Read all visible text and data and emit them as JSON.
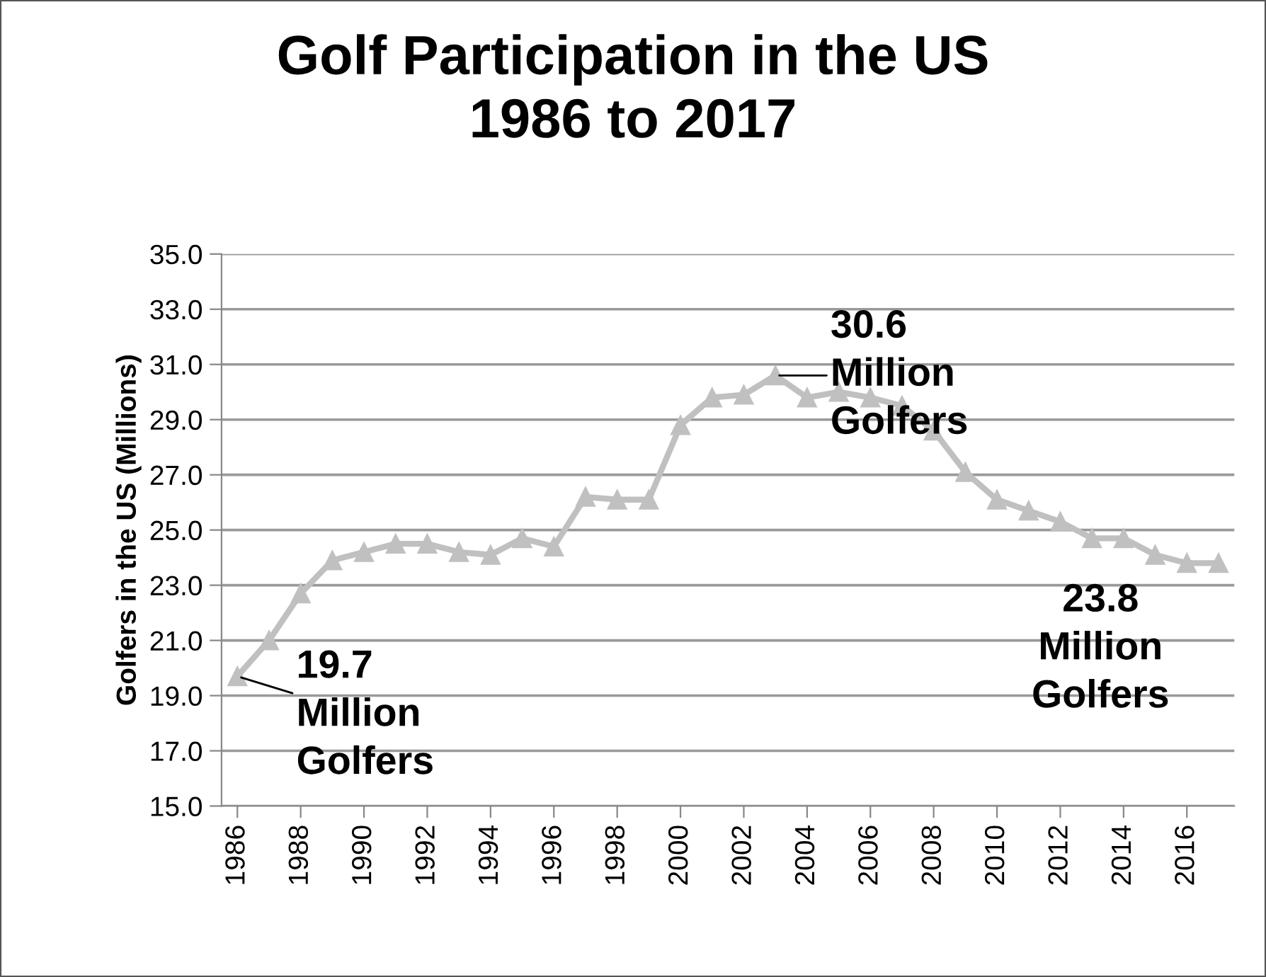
{
  "chart_data": {
    "type": "line",
    "title": "Golf Participation in the US\n1986 to 2017",
    "ylabel": "Golfers in the US (Millions)",
    "x": [
      1986,
      1987,
      1988,
      1989,
      1990,
      1991,
      1992,
      1993,
      1994,
      1995,
      1996,
      1997,
      1998,
      1999,
      2000,
      2001,
      2002,
      2003,
      2004,
      2005,
      2006,
      2007,
      2008,
      2009,
      2010,
      2011,
      2012,
      2013,
      2014,
      2015,
      2016,
      2017
    ],
    "series": [
      {
        "color": "#c0c0c0",
        "values": [
          19.7,
          21.0,
          22.7,
          23.9,
          24.2,
          24.5,
          24.5,
          24.2,
          24.1,
          24.7,
          24.4,
          26.2,
          26.1,
          26.1,
          28.8,
          29.8,
          29.9,
          30.6,
          29.8,
          30.0,
          29.8,
          29.5,
          28.6,
          27.1,
          26.1,
          25.7,
          25.3,
          24.7,
          24.7,
          24.1,
          23.8,
          23.8
        ]
      }
    ],
    "xlim": [
      1985.5,
      2017.5
    ],
    "xticks": [
      1986,
      1988,
      1990,
      1992,
      1994,
      1996,
      1998,
      2000,
      2002,
      2004,
      2006,
      2008,
      2010,
      2012,
      2014,
      2016
    ],
    "ylim": [
      15,
      35
    ],
    "yticks": [
      {
        "value": 15,
        "label": "15.0"
      },
      {
        "value": 17,
        "label": "17.0"
      },
      {
        "value": 19,
        "label": "19.0"
      },
      {
        "value": 21,
        "label": "21.0"
      },
      {
        "value": 23,
        "label": "23.0"
      },
      {
        "value": 25,
        "label": "25.0"
      },
      {
        "value": 27,
        "label": "27.0"
      },
      {
        "value": 29,
        "label": "29.0"
      },
      {
        "value": 31,
        "label": "31.0"
      },
      {
        "value": 33,
        "label": "33.0"
      },
      {
        "value": 35,
        "label": "35.0"
      }
    ],
    "annotations": [
      {
        "text": "19.7\nMillion\nGolfers",
        "x": 1986,
        "y": 19.7
      },
      {
        "text": "30.6\nMillion\nGolfers",
        "x": 2003,
        "y": 30.6
      },
      {
        "text": "23.8\nMillion\nGolfers",
        "x": 2017,
        "y": 23.8
      }
    ],
    "grid": "y",
    "marker": "triangle",
    "line_style": "solid",
    "legend": false
  }
}
